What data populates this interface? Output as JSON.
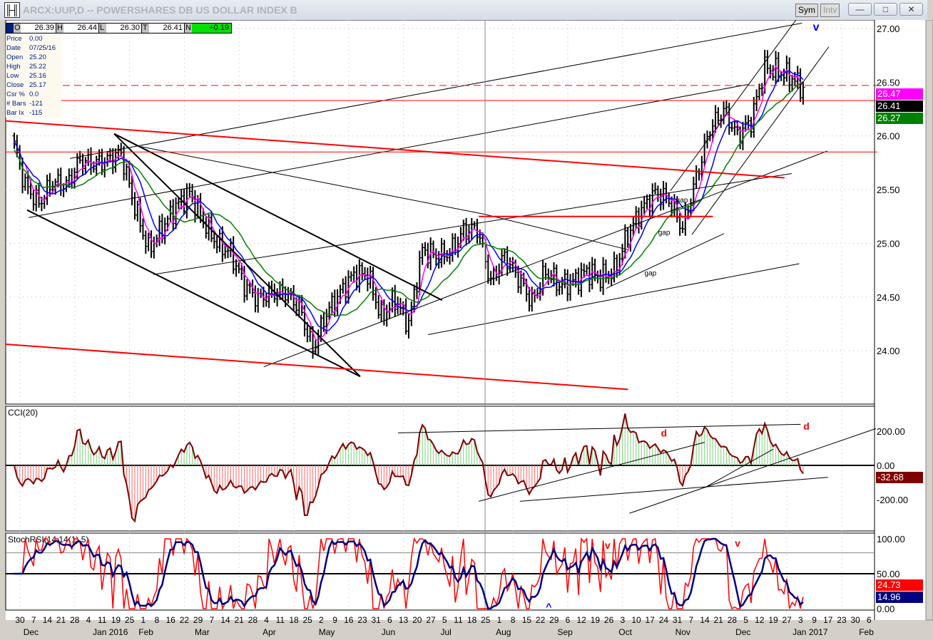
{
  "window": {
    "title": "ARCX:UUP,D -- POWERSHARES DB US DOLLAR INDEX B",
    "sym_label": "Sym",
    "intv_label": "Intv",
    "minimize": "—",
    "maximize": "□",
    "close": "✕"
  },
  "ohlc": {
    "o_key": "O",
    "o": "26.39",
    "h_key": "H",
    "h": "26.44",
    "l_key": "L",
    "l": "26.30",
    "t_key": "T",
    "t": "26.41",
    "n_key": "N",
    "n": "+0.19"
  },
  "info": [
    {
      "k": "Price",
      "v": "0.00"
    },
    {
      "k": "Date",
      "v": "07/25/16"
    },
    {
      "k": "Open",
      "v": "25.20"
    },
    {
      "k": "High",
      "v": "25.22"
    },
    {
      "k": "Low",
      "v": "25.16"
    },
    {
      "k": "Close",
      "v": "25.17"
    },
    {
      "k": "Csr %",
      "v": "0.0"
    },
    {
      "k": "# Bars",
      "v": "-121"
    },
    {
      "k": "Bar Ix",
      "v": "-115"
    }
  ],
  "price_axis": {
    "ticks": [
      "27.00",
      "26.50",
      "26.00",
      "25.50",
      "25.00",
      "24.50",
      "24.00"
    ],
    "tick_values": [
      27,
      26.5,
      26,
      25.5,
      25,
      24.5,
      24
    ]
  },
  "price_tags": {
    "ma_fast": "26.47",
    "last": "26.41",
    "ma_slow": "26.27",
    "ma_fast_color": "#ff00ff",
    "last_color": "#000000",
    "ma_slow_color": "#008000"
  },
  "cci": {
    "label": "CCI(20)",
    "ticks": [
      "200.00",
      "0.00",
      "-200.00"
    ],
    "tick_values": [
      200,
      0,
      -200
    ],
    "value": "-32.68",
    "value_color": "#800000"
  },
  "stoch": {
    "label": "StochRSI(14,14(1),5)",
    "ticks": [
      "100.00",
      "50.00",
      "0.00"
    ],
    "tick_values": [
      100,
      50,
      0
    ],
    "value_k": "24.73",
    "value_d": "14.96",
    "k_color": "#ff0000",
    "d_color": "#000080"
  },
  "x_axis": {
    "days": [
      "30",
      "7",
      "14",
      "21",
      "28",
      "4",
      "11",
      "19",
      "25",
      "1",
      "8",
      "16",
      "22",
      "29",
      "7",
      "14",
      "21",
      "28",
      "4",
      "11",
      "18",
      "25",
      "2",
      "9",
      "16",
      "23",
      "31",
      "6",
      "13",
      "20",
      "27",
      "5",
      "11",
      "18",
      "25",
      "1",
      "8",
      "15",
      "22",
      "29",
      "6",
      "12",
      "19",
      "26",
      "3",
      "10",
      "17",
      "24",
      "31",
      "7",
      "14",
      "21",
      "28",
      "5",
      "12",
      "19",
      "27",
      "3",
      "9",
      "17",
      "23",
      "30",
      "6"
    ],
    "months": [
      {
        "label": "Dec",
        "week": 0.8
      },
      {
        "label": "Jan 2016",
        "week": 6.6
      },
      {
        "label": "Feb",
        "week": 9.2
      },
      {
        "label": "Mar",
        "week": 13.3
      },
      {
        "label": "Apr",
        "week": 18.2
      },
      {
        "label": "May",
        "week": 22.4
      },
      {
        "label": "Jun",
        "week": 26.9
      },
      {
        "label": "Jul",
        "week": 31.1
      },
      {
        "label": "Aug",
        "week": 35.3
      },
      {
        "label": "Sep",
        "week": 39.8
      },
      {
        "label": "Oct",
        "week": 44.2
      },
      {
        "label": "Nov",
        "week": 48.4
      },
      {
        "label": "Dec",
        "week": 52.8
      },
      {
        "label": "Jan 2017",
        "week": 57.7
      },
      {
        "label": "Feb",
        "week": 61.8
      }
    ]
  },
  "chart_data": {
    "type": "ohlc",
    "title": "ARCX:UUP,D -- POWERSHARES DB US DOLLAR INDEX B",
    "ylim": [
      23.6,
      27.1
    ],
    "weekly_close": [
      26.0,
      25.54,
      25.37,
      25.57,
      25.54,
      25.77,
      25.74,
      25.77,
      25.84,
      25.34,
      24.94,
      25.14,
      25.34,
      25.47,
      25.21,
      25.0,
      24.91,
      24.61,
      24.48,
      24.54,
      24.54,
      24.41,
      24.01,
      24.35,
      24.54,
      24.71,
      24.71,
      24.31,
      24.48,
      24.25,
      24.94,
      24.88,
      24.91,
      25.11,
      25.14,
      24.64,
      24.88,
      24.68,
      24.45,
      24.74,
      24.61,
      24.64,
      24.74,
      24.68,
      24.74,
      25.08,
      25.31,
      25.47,
      25.41,
      25.14,
      25.61,
      26.07,
      26.24,
      26.0,
      26.14,
      26.64,
      26.6,
      26.54,
      26.41
    ],
    "moving_averages": [
      {
        "name": "fast",
        "period": 5,
        "color": "#ff00ff"
      },
      {
        "name": "mid",
        "period": 10,
        "color": "#0000ff"
      },
      {
        "name": "slow",
        "period": 20,
        "color": "#008000"
      }
    ],
    "crosshair_week": 33.96,
    "trendlines": [
      {
        "w1": 6.875,
        "p1": 26.02,
        "w2": 24.84,
        "p2": 23.76,
        "color": "#000",
        "width": 2
      },
      {
        "w1": 0.52,
        "p1": 25.31,
        "w2": 24.84,
        "p2": 23.76,
        "color": "#000",
        "width": 2
      },
      {
        "w1": 6.875,
        "p1": 26.02,
        "w2": 30.83,
        "p2": 24.47,
        "color": "#000",
        "width": 2
      },
      {
        "w1": 3.65,
        "p1": 25.79,
        "w2": 57.1,
        "p2": 27.05,
        "color": "#000",
        "width": 1
      },
      {
        "w1": 0.63,
        "p1": 25.24,
        "w2": 53.2,
        "p2": 26.48,
        "color": "#000",
        "width": 1
      },
      {
        "w1": 17.8,
        "p1": 23.85,
        "w2": 58.96,
        "p2": 25.86,
        "color": "#000",
        "width": 1
      },
      {
        "w1": 9.74,
        "p1": 24.71,
        "w2": 56.35,
        "p2": 25.65,
        "color": "#000",
        "width": 1
      },
      {
        "w1": 29.8,
        "p1": 24.15,
        "w2": 56.9,
        "p2": 24.81,
        "color": "#000",
        "width": 1
      },
      {
        "w1": 8.44,
        "p1": 25.91,
        "w2": 33.96,
        "p2": 25.27,
        "color": "#000",
        "width": 1
      },
      {
        "w1": 33.96,
        "p1": 25.27,
        "w2": 44.4,
        "p2": 24.94,
        "color": "#000",
        "width": 1
      },
      {
        "w1": 47.5,
        "p1": 25.49,
        "w2": 57.3,
        "p2": 27.19,
        "color": "#000",
        "width": 1
      },
      {
        "w1": 49.06,
        "p1": 25.08,
        "w2": 59.06,
        "p2": 26.83,
        "color": "#000",
        "width": 1
      },
      {
        "w1": 42.8,
        "p1": 24.58,
        "w2": 51.4,
        "p2": 25.09,
        "color": "#000",
        "width": 1
      },
      {
        "w1": -1.04,
        "p1": 26.14,
        "w2": 55.83,
        "p2": 25.61,
        "color": "#ff0000",
        "width": 2
      },
      {
        "w1": -1.04,
        "p1": 24.06,
        "w2": 44.4,
        "p2": 23.64,
        "color": "#ff0000",
        "width": 2
      },
      {
        "w1": -1.04,
        "p1": 26.33,
        "w2": 62.6,
        "p2": 26.33,
        "color": "#ff0000",
        "width": 1
      },
      {
        "w1": -1.04,
        "p1": 25.85,
        "w2": 62.6,
        "p2": 25.85,
        "color": "#ff0000",
        "width": 1
      },
      {
        "w1": 33.5,
        "p1": 25.25,
        "w2": 50.6,
        "p2": 25.25,
        "color": "#ff0000",
        "width": 2
      },
      {
        "w1": -1.04,
        "p1": 26.47,
        "w2": 62.6,
        "p2": 26.47,
        "color": "#ff0000",
        "width": 1,
        "dash": true
      }
    ],
    "annotations": [
      {
        "text": "v",
        "week": 57.9,
        "price": 26.98,
        "color": "#0000ff"
      },
      {
        "text": "gap",
        "week": 47.9,
        "price": 25.38,
        "color": "#000"
      },
      {
        "text": "gap",
        "week": 46.6,
        "price": 25.08,
        "color": "#000"
      },
      {
        "text": "gap",
        "week": 45.6,
        "price": 24.7,
        "color": "#000"
      }
    ],
    "cci_annotations": [
      {
        "text": "d",
        "week": 46.8,
        "value": 210
      },
      {
        "text": "d",
        "week": 57.2,
        "value": 250
      }
    ],
    "stoch_annotations": [
      {
        "text": "v",
        "week": 42.7,
        "value": 90,
        "color": "#ff0000"
      },
      {
        "text": "v",
        "week": 52.2,
        "value": 93,
        "color": "#ff0000"
      },
      {
        "text": "^",
        "week": 38.4,
        "value": -2,
        "color": "#0000ff"
      }
    ]
  }
}
